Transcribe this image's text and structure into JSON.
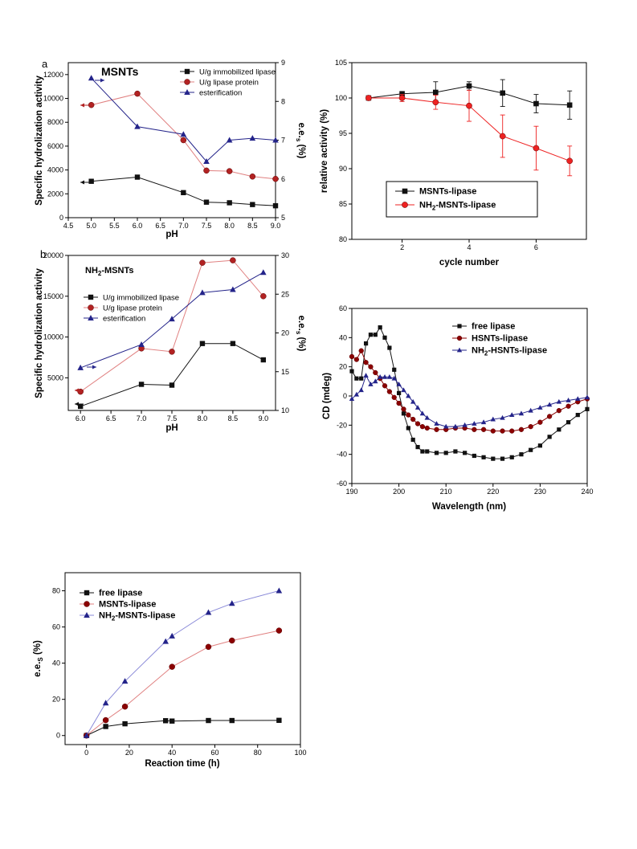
{
  "colors": {
    "black": "#111111",
    "red": "#b22222",
    "blue": "#24248a",
    "bright_red": "#ee2222",
    "dark_red": "#8b0000",
    "blue_line": "#8a8ad8",
    "red_line": "#e08080"
  },
  "chart_data": [
    {
      "id": "a",
      "type": "line",
      "panel_label": "a",
      "title": "MSNTs",
      "xlabel": "pH",
      "ylabel": "Specific hydrolization activity",
      "y2label": "e.e.",
      "y2label_sub": "s",
      "y2label_unit": " (%)",
      "xlim": [
        4.5,
        9.0
      ],
      "ylim": [
        0,
        13000
      ],
      "y2lim": [
        5,
        9
      ],
      "xticks": [
        "4.5",
        "5.0",
        "5.5",
        "6.0",
        "6.5",
        "7.0",
        "7.5",
        "8.0",
        "8.5",
        "9.0"
      ],
      "yticks": [
        "0",
        "2000",
        "4000",
        "6000",
        "8000",
        "10000",
        "12000"
      ],
      "y2ticks": [
        "5",
        "6",
        "7",
        "8",
        "9"
      ],
      "legend_position": "top-right",
      "series": [
        {
          "name": "U/g immobilized lipase",
          "axis": "left",
          "marker": "square",
          "x": [
            5.0,
            6.0,
            7.0,
            7.5,
            8.0,
            8.5,
            9.0
          ],
          "y": [
            3050,
            3400,
            2100,
            1300,
            1250,
            1100,
            1000
          ]
        },
        {
          "name": "U/g lipase protein",
          "axis": "left",
          "marker": "circle",
          "x": [
            5.0,
            6.0,
            7.0,
            7.5,
            8.0,
            8.5,
            9.0
          ],
          "y": [
            9450,
            10400,
            6500,
            3950,
            3900,
            3450,
            3250
          ]
        },
        {
          "name": "esterification",
          "axis": "right",
          "marker": "triangle",
          "x": [
            5.0,
            6.0,
            7.0,
            7.5,
            8.0,
            8.5,
            9.0
          ],
          "y": [
            8.6,
            7.35,
            7.15,
            6.45,
            7.0,
            7.05,
            7.0
          ]
        }
      ]
    },
    {
      "id": "b",
      "type": "line",
      "panel_label": "b",
      "title": "NH",
      "title_sub": "2",
      "title_rest": "-MSNTs",
      "xlabel": "pH",
      "ylabel": "Specific hydrolization activity",
      "y2label": "e.e.",
      "y2label_sub": "s",
      "y2label_unit": " (%)",
      "xlim": [
        5.8,
        9.2
      ],
      "ylim": [
        1000,
        20000
      ],
      "y2lim": [
        10,
        30
      ],
      "xticks": [
        "6.0",
        "6.5",
        "7.0",
        "7.5",
        "8.0",
        "8.5",
        "9.0"
      ],
      "yticks": [
        "5000",
        "10000",
        "15000",
        "20000"
      ],
      "y2ticks": [
        "10",
        "15",
        "20",
        "25",
        "30"
      ],
      "legend_position": "left",
      "series": [
        {
          "name": "U/g immobilized lipase",
          "axis": "left",
          "marker": "square",
          "x": [
            6.0,
            7.0,
            7.5,
            8.0,
            8.5,
            9.0
          ],
          "y": [
            1500,
            4200,
            4100,
            9200,
            9200,
            7200
          ]
        },
        {
          "name": "U/g lipase protein",
          "axis": "left",
          "marker": "circle",
          "x": [
            6.0,
            7.0,
            7.5,
            8.0,
            8.5,
            9.0
          ],
          "y": [
            3300,
            8600,
            8200,
            19100,
            19400,
            15000
          ]
        },
        {
          "name": "esterification",
          "axis": "right",
          "marker": "triangle",
          "x": [
            6.0,
            7.0,
            7.5,
            8.0,
            8.5,
            9.0
          ],
          "y": [
            15.5,
            18.5,
            21.8,
            25.2,
            25.6,
            27.8
          ]
        }
      ]
    },
    {
      "id": "c",
      "type": "line",
      "title": "",
      "xlabel": "cycle number",
      "ylabel": "relative activity (%)",
      "xlim": [
        0.5,
        7.5
      ],
      "ylim": [
        80,
        105
      ],
      "xticks": [
        "2",
        "4",
        "6"
      ],
      "yticks": [
        "80",
        "85",
        "90",
        "95",
        "100",
        "105"
      ],
      "legend_position": "bottom-left",
      "series": [
        {
          "name": "MSNTs-lipase",
          "marker": "square",
          "x": [
            1,
            2,
            3,
            4,
            5,
            6,
            7
          ],
          "y": [
            100.0,
            100.6,
            100.8,
            101.7,
            100.7,
            99.2,
            99.0
          ],
          "err": [
            0.2,
            0.3,
            1.5,
            0.6,
            1.9,
            1.3,
            2.0
          ]
        },
        {
          "name": "NH2-MSNTs-lipase",
          "name_prefix": "NH",
          "name_sub": "2",
          "name_rest": "-MSNTs-lipase",
          "marker": "circle",
          "x": [
            1,
            2,
            3,
            4,
            5,
            6,
            7
          ],
          "y": [
            100.0,
            100.0,
            99.4,
            98.9,
            94.6,
            92.9,
            91.1
          ],
          "err": [
            0.3,
            0.5,
            1.0,
            2.2,
            3.0,
            3.1,
            2.1
          ]
        }
      ]
    },
    {
      "id": "d",
      "type": "line",
      "title": "",
      "xlabel": "Wavelength (nm)",
      "ylabel": "CD (mdeg)",
      "xlim": [
        190,
        240
      ],
      "ylim": [
        -60,
        60
      ],
      "xticks": [
        "190",
        "200",
        "210",
        "220",
        "230",
        "240"
      ],
      "yticks": [
        "-60",
        "-40",
        "-20",
        "0",
        "20",
        "40",
        "60"
      ],
      "legend_position": "top-right",
      "series": [
        {
          "name": "free lipase",
          "marker": "square",
          "x": [
            190,
            191,
            192,
            193,
            194,
            195,
            196,
            197,
            198,
            199,
            200,
            201,
            202,
            203,
            204,
            205,
            206,
            208,
            210,
            212,
            214,
            216,
            218,
            220,
            222,
            224,
            226,
            228,
            230,
            232,
            234,
            236,
            238,
            240
          ],
          "y": [
            17,
            12,
            12,
            36,
            42,
            42,
            47,
            40,
            33,
            18,
            2,
            -12,
            -22,
            -30,
            -35,
            -38,
            -38,
            -39,
            -39,
            -38,
            -39,
            -41,
            -42,
            -43,
            -43,
            -42,
            -40,
            -37,
            -34,
            -28,
            -23,
            -18,
            -13,
            -9
          ]
        },
        {
          "name": "HSNTs-lipase",
          "marker": "circle",
          "x": [
            190,
            191,
            192,
            193,
            194,
            195,
            196,
            197,
            198,
            199,
            200,
            201,
            202,
            203,
            204,
            205,
            206,
            208,
            210,
            212,
            214,
            216,
            218,
            220,
            222,
            224,
            226,
            228,
            230,
            232,
            234,
            236,
            238,
            240
          ],
          "y": [
            27,
            25,
            31,
            23,
            20,
            16,
            12,
            7,
            3,
            -1,
            -5,
            -9,
            -13,
            -16,
            -19,
            -21,
            -22,
            -23,
            -23,
            -22,
            -22,
            -23,
            -23,
            -24,
            -24,
            -24,
            -23,
            -21,
            -18,
            -14,
            -10,
            -7,
            -4,
            -2
          ]
        },
        {
          "name": "NH2-HSNTs-lipase",
          "name_prefix": "NH",
          "name_sub": "2",
          "name_rest": "-HSNTs-lipase",
          "marker": "triangle",
          "x": [
            190,
            191,
            192,
            193,
            194,
            195,
            196,
            197,
            198,
            199,
            200,
            201,
            202,
            203,
            204,
            205,
            206,
            208,
            210,
            212,
            214,
            216,
            218,
            220,
            222,
            224,
            226,
            228,
            230,
            232,
            234,
            236,
            238,
            240
          ],
          "y": [
            -2,
            1,
            4,
            14,
            8,
            10,
            13,
            13,
            13,
            12,
            8,
            4,
            0,
            -4,
            -8,
            -12,
            -15,
            -19,
            -21,
            -21,
            -20,
            -19,
            -18,
            -16,
            -15,
            -13,
            -12,
            -10,
            -8,
            -6,
            -4,
            -3,
            -2,
            -1
          ]
        }
      ]
    },
    {
      "id": "e",
      "type": "line",
      "title": "",
      "xlabel": "Reaction time (h)",
      "ylabel": "e.e.",
      "ylabel_sub": "S",
      "ylabel_unit": " (%)",
      "xlim": [
        -10,
        100
      ],
      "ylim": [
        -5,
        90
      ],
      "xticks": [
        "0",
        "20",
        "40",
        "60",
        "80",
        "100"
      ],
      "yticks": [
        "0",
        "20",
        "40",
        "60",
        "80"
      ],
      "legend_position": "top-left",
      "series": [
        {
          "name": "free lipase",
          "marker": "square",
          "x": [
            0,
            9,
            18,
            37,
            40,
            57,
            68,
            90
          ],
          "y": [
            0,
            5,
            6.5,
            8.2,
            8.0,
            8.3,
            8.3,
            8.4
          ]
        },
        {
          "name": "MSNTs-lipase",
          "marker": "circle",
          "x": [
            0,
            9,
            18,
            40,
            57,
            68,
            90
          ],
          "y": [
            0,
            8.5,
            16,
            38,
            49,
            52.5,
            58
          ]
        },
        {
          "name": "NH2-MSNTs-lipase",
          "name_prefix": "NH",
          "name_sub": "2",
          "name_rest": "-MSNTs-lipase",
          "marker": "triangle",
          "x": [
            0,
            9,
            18,
            37,
            40,
            57,
            68,
            90
          ],
          "y": [
            0,
            18,
            30,
            52,
            55,
            68,
            73,
            80
          ]
        }
      ]
    }
  ]
}
